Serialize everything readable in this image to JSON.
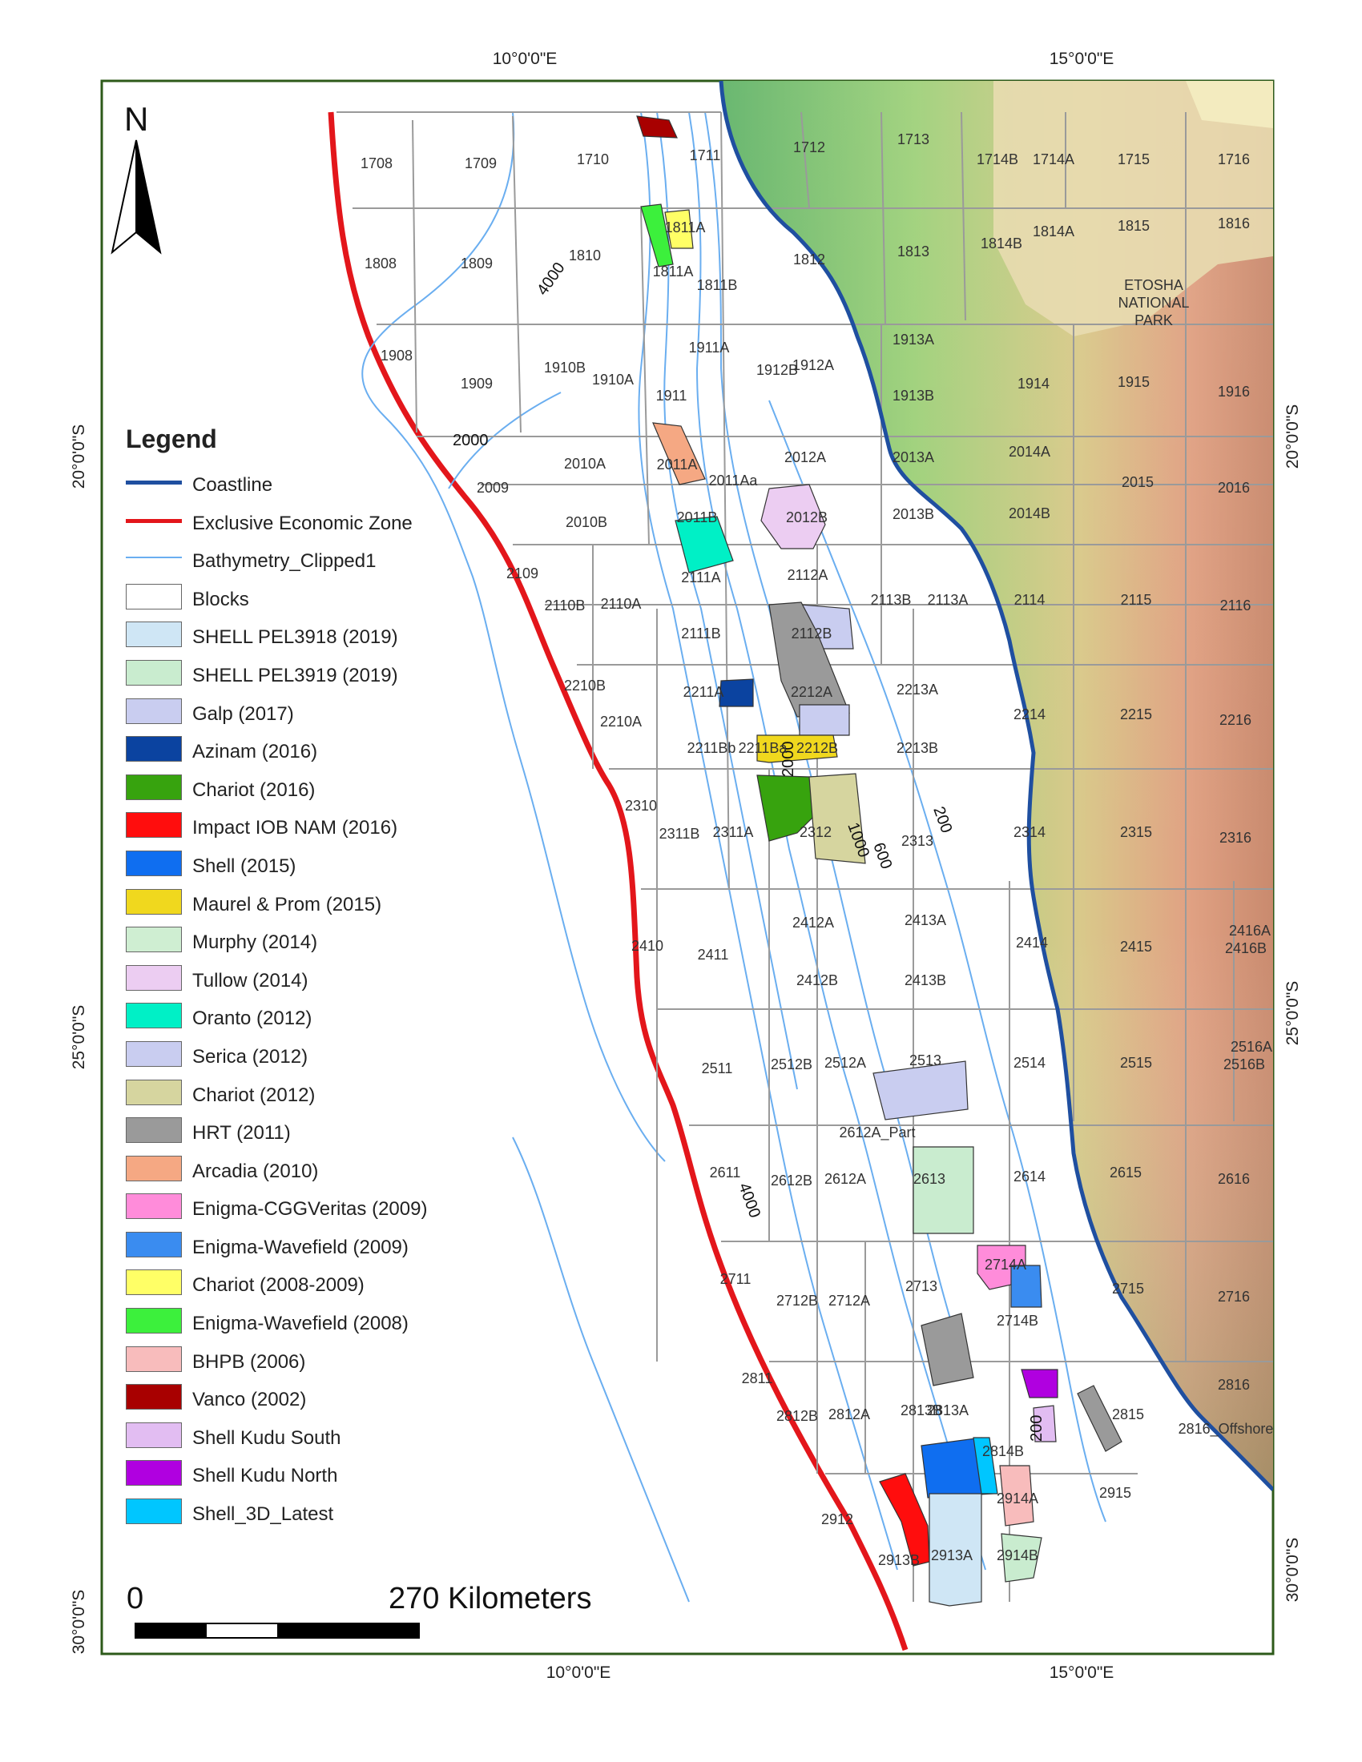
{
  "map": {
    "coordinates": {
      "top": [
        "10°0'0\"E",
        "15°0'0\"E"
      ],
      "bottom": [
        "10°0'0\"E",
        "15°0'0\"E"
      ],
      "left": [
        "20°0'0\"S",
        "25°0'0\"S",
        "30°0'0\"S"
      ],
      "right": [
        "20°0'0\"S",
        "25°0'0\"S",
        "30°0'0\"S"
      ]
    },
    "north_label": "N",
    "park_label": [
      "ETOSHA",
      "NATIONAL",
      "PARK"
    ],
    "depth_labels": [
      "4000",
      "2000",
      "2000",
      "1000",
      "600",
      "200",
      "4000",
      "200"
    ],
    "blocks": [
      "1708",
      "1709",
      "1710",
      "1711",
      "1712",
      "1713",
      "1714B",
      "1714A",
      "1715",
      "1716",
      "1808",
      "1809",
      "1810",
      "1811A",
      "1811A",
      "1811B",
      "1812",
      "1813",
      "1814B",
      "1814A",
      "1815",
      "1816",
      "1908",
      "1909",
      "1910B",
      "1910A",
      "1911A",
      "1911",
      "1912B",
      "1912A",
      "1913A",
      "1913B",
      "1914",
      "1915",
      "1916",
      "2009",
      "2010A",
      "2010B",
      "2011A",
      "2011Aa",
      "2011B",
      "2012A",
      "2012B",
      "2013A",
      "2013B",
      "2014A",
      "2014B",
      "2015",
      "2016",
      "2109",
      "2110B",
      "2110A",
      "2111A",
      "2111B",
      "2112A",
      "2112B",
      "2113B",
      "2113A",
      "2114",
      "2115",
      "2116",
      "2210B",
      "2210A",
      "2211A",
      "2211Bb",
      "2211Ba",
      "2212A",
      "2212B",
      "2213A",
      "2213B",
      "2214",
      "2215",
      "2216",
      "2310",
      "2311B",
      "2311A",
      "2312",
      "2313",
      "2314",
      "2315",
      "2316",
      "2410",
      "2411",
      "2412A",
      "2412B",
      "2413A",
      "2413B",
      "2414",
      "2415",
      "2416A",
      "2416B",
      "2511",
      "2512B",
      "2512A",
      "2513",
      "2514",
      "2515",
      "2516A",
      "2516B",
      "2611",
      "2612B",
      "2612A",
      "2613",
      "2614",
      "2615",
      "2616",
      "2612A_Part",
      "2711",
      "2712B",
      "2712A",
      "2713",
      "2714A",
      "2714B",
      "2715",
      "2716",
      "2811",
      "2812B",
      "2812A",
      "2813B",
      "2813A",
      "2814B",
      "2815",
      "2816_Offshore",
      "2816",
      "2912",
      "2913B",
      "2913A",
      "2914A",
      "2914B",
      "2915"
    ]
  },
  "legend": {
    "title": "Legend",
    "items": [
      {
        "label": "Coastline",
        "kind": "line",
        "color": "#1f4fa0"
      },
      {
        "label": "Exclusive Economic Zone",
        "kind": "line",
        "color": "#e3161b"
      },
      {
        "label": "Bathymetry_Clipped1",
        "kind": "thin",
        "color": "#6aaef0"
      },
      {
        "label": "Blocks",
        "kind": "box",
        "color": "#ffffff"
      },
      {
        "label": "SHELL PEL3918 (2019)",
        "kind": "box",
        "color": "#cfe6f5"
      },
      {
        "label": "SHELL PEL3919 (2019)",
        "kind": "box",
        "color": "#c9eccf"
      },
      {
        "label": "Galp (2017)",
        "kind": "box",
        "color": "#c9cdf0"
      },
      {
        "label": "Azinam (2016)",
        "kind": "box",
        "color": "#0b43a0"
      },
      {
        "label": "Chariot (2016)",
        "kind": "box",
        "color": "#37a30e"
      },
      {
        "label": "Impact IOB NAM (2016)",
        "kind": "box",
        "color": "#ff0d0d"
      },
      {
        "label": "Shell (2015)",
        "kind": "box",
        "color": "#0f6ef0"
      },
      {
        "label": "Maurel & Prom (2015)",
        "kind": "box",
        "color": "#f0d81e"
      },
      {
        "label": "Murphy (2014)",
        "kind": "box",
        "color": "#cfeed2"
      },
      {
        "label": "Tullow (2014)",
        "kind": "box",
        "color": "#eccdf2"
      },
      {
        "label": "Oranto (2012)",
        "kind": "box",
        "color": "#00f0c6"
      },
      {
        "label": "Serica (2012)",
        "kind": "box",
        "color": "#c9cdf0"
      },
      {
        "label": "Chariot (2012)",
        "kind": "box",
        "color": "#d6d59f"
      },
      {
        "label": "HRT (2011)",
        "kind": "box",
        "color": "#9a9a9a"
      },
      {
        "label": "Arcadia (2010)",
        "kind": "box",
        "color": "#f5a883"
      },
      {
        "label": "Enigma-CGGVeritas (2009)",
        "kind": "box",
        "color": "#ff8cda"
      },
      {
        "label": "Enigma-Wavefield (2009)",
        "kind": "box",
        "color": "#3a8cf0"
      },
      {
        "label": "Chariot (2008-2009)",
        "kind": "box",
        "color": "#ffff66"
      },
      {
        "label": "Enigma-Wavefield (2008)",
        "kind": "box",
        "color": "#3cf03c"
      },
      {
        "label": "BHPB (2006)",
        "kind": "box",
        "color": "#f8bcbc"
      },
      {
        "label": "Vanco (2002)",
        "kind": "box",
        "color": "#a80000"
      },
      {
        "label": "Shell Kudu South",
        "kind": "box",
        "color": "#e2bdf2"
      },
      {
        "label": "Shell Kudu North",
        "kind": "box",
        "color": "#b000e0"
      },
      {
        "label": "Shell_3D_Latest",
        "kind": "box",
        "color": "#00c6ff"
      }
    ]
  },
  "scale": {
    "start": "0",
    "end": "270 Kilometers"
  }
}
